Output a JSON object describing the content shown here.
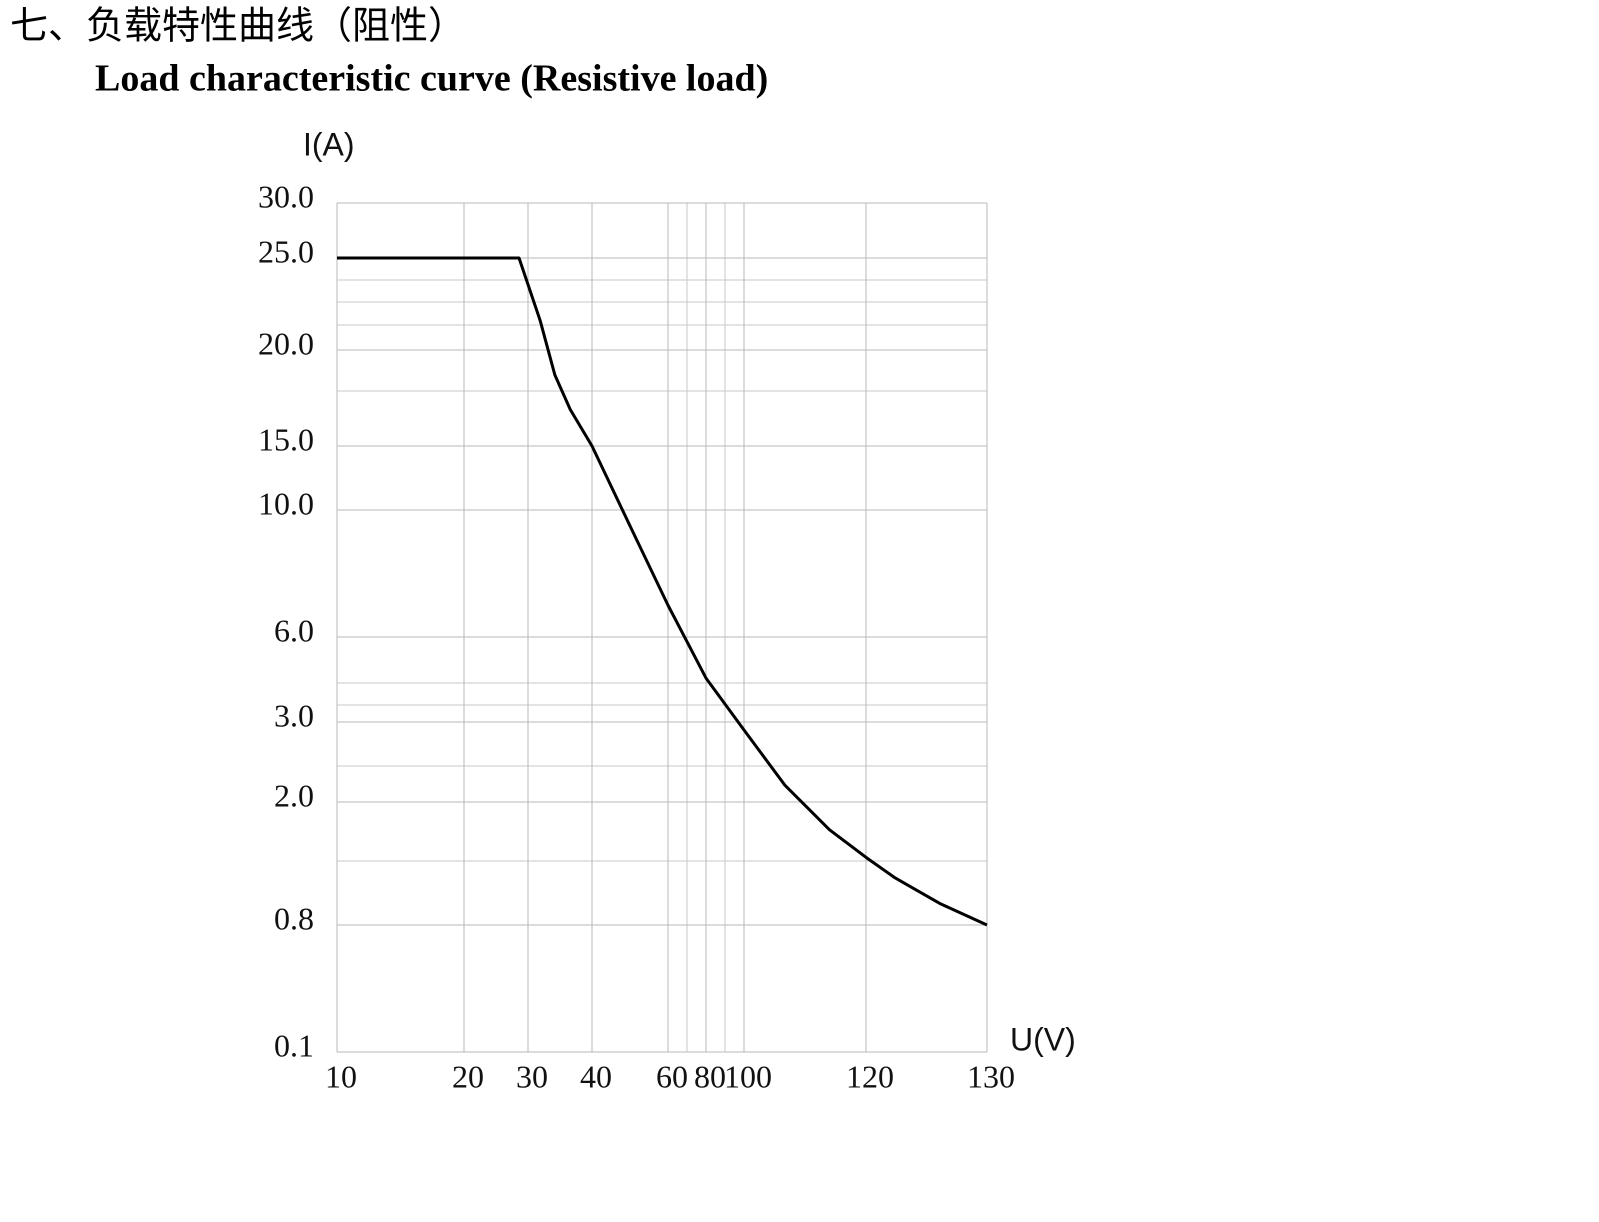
{
  "chart_data": {
    "type": "line",
    "title": "七、负载特性曲线（阻性）",
    "subtitle": "Load characteristic curve (Resistive load)",
    "y_label": "I(A)",
    "x_label": "U(V)",
    "grid": true,
    "xlim": [
      10,
      130
    ],
    "ylim": [
      0.1,
      30
    ],
    "xticks": [
      10,
      20,
      30,
      40,
      60,
      80,
      100,
      120,
      130
    ],
    "yticks": [
      {
        "value": 30,
        "label": "30.0"
      },
      {
        "value": 25,
        "label": "25.0"
      },
      {
        "value": 20,
        "label": "20.0"
      },
      {
        "value": 15,
        "label": "15.0"
      },
      {
        "value": 10,
        "label": "10.0"
      },
      {
        "value": 6,
        "label": "6.0"
      },
      {
        "value": 3,
        "label": "3.0"
      },
      {
        "value": 2,
        "label": "2.0"
      },
      0.8,
      0.1
    ],
    "series": [
      {
        "color": "#000000",
        "x": [
          10,
          28.6,
          31.9,
          34.2,
          36.6,
          40,
          50,
          60,
          80,
          100,
          106.7,
          114,
          120,
          122.4,
          126.1,
          130
        ],
        "values": [
          25,
          25,
          21.6,
          18.7,
          16.9,
          15,
          9.5,
          7.0,
          4.55,
          2.9,
          2.21,
          1.73,
          1.46,
          1.26,
          1.01,
          0.8
        ]
      }
    ]
  }
}
